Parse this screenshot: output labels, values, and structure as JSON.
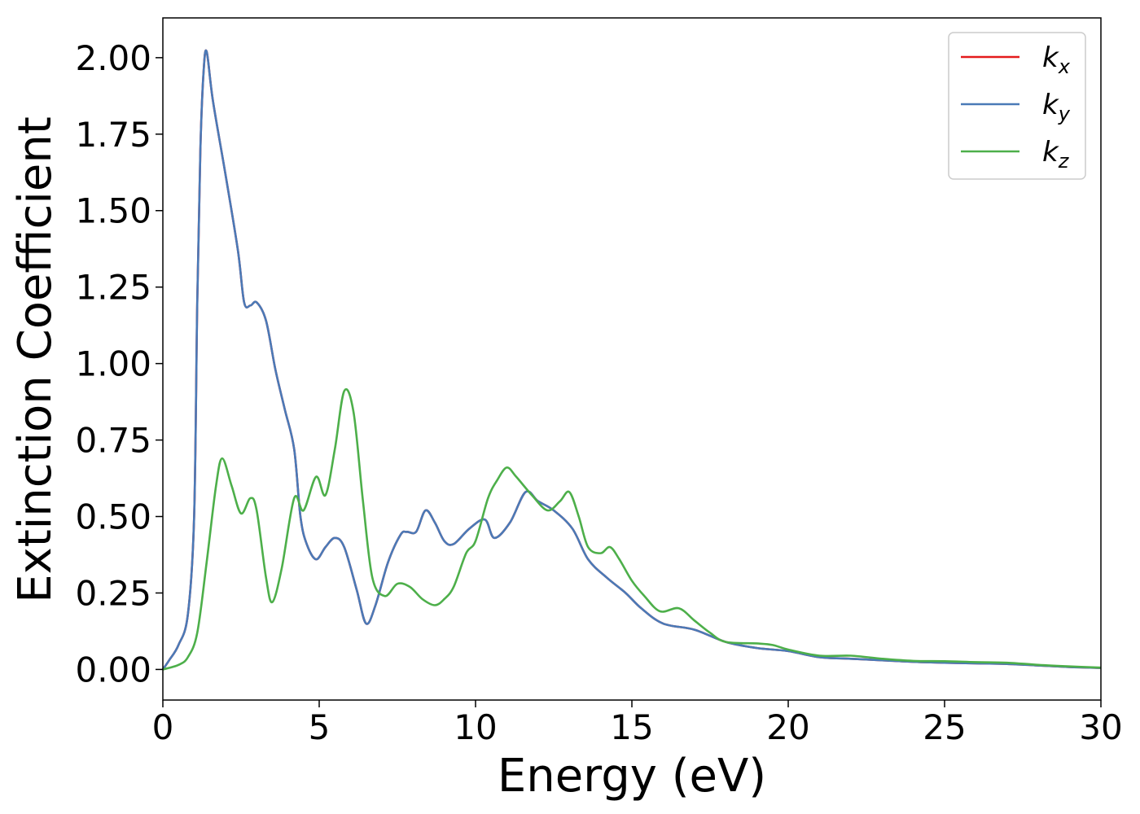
{
  "chart_data": {
    "type": "line",
    "xlabel": "Energy (eV)",
    "ylabel": "Extinction Coefficient",
    "xlim": [
      0,
      30
    ],
    "ylim": [
      -0.1,
      2.13
    ],
    "xticks": [
      0,
      5,
      10,
      15,
      20,
      25,
      30
    ],
    "yticks": [
      "0.00",
      "0.25",
      "0.50",
      "0.75",
      "1.00",
      "1.25",
      "1.50",
      "1.75",
      "2.00"
    ],
    "grid": false,
    "legend_position": "top-right",
    "series": [
      {
        "name": "k",
        "subscript": "x",
        "color": "#e41a1c",
        "points": [
          [
            0,
            0
          ],
          [
            0.2,
            0.03
          ],
          [
            0.5,
            0.08
          ],
          [
            0.8,
            0.18
          ],
          [
            1.0,
            0.5
          ],
          [
            1.1,
            1.2
          ],
          [
            1.2,
            1.7
          ],
          [
            1.3,
            1.95
          ],
          [
            1.4,
            2.02
          ],
          [
            1.6,
            1.86
          ],
          [
            2.0,
            1.62
          ],
          [
            2.4,
            1.37
          ],
          [
            2.6,
            1.2
          ],
          [
            2.8,
            1.19
          ],
          [
            3.0,
            1.2
          ],
          [
            3.3,
            1.14
          ],
          [
            3.6,
            0.98
          ],
          [
            3.9,
            0.85
          ],
          [
            4.2,
            0.72
          ],
          [
            4.4,
            0.5
          ],
          [
            4.6,
            0.41
          ],
          [
            4.9,
            0.36
          ],
          [
            5.2,
            0.4
          ],
          [
            5.5,
            0.43
          ],
          [
            5.8,
            0.4
          ],
          [
            6.2,
            0.26
          ],
          [
            6.5,
            0.15
          ],
          [
            6.8,
            0.21
          ],
          [
            7.2,
            0.35
          ],
          [
            7.6,
            0.44
          ],
          [
            7.8,
            0.45
          ],
          [
            8.1,
            0.45
          ],
          [
            8.4,
            0.52
          ],
          [
            8.7,
            0.48
          ],
          [
            9.0,
            0.42
          ],
          [
            9.3,
            0.41
          ],
          [
            9.8,
            0.46
          ],
          [
            10.3,
            0.49
          ],
          [
            10.6,
            0.43
          ],
          [
            11.1,
            0.48
          ],
          [
            11.6,
            0.58
          ],
          [
            12.0,
            0.55
          ],
          [
            12.5,
            0.52
          ],
          [
            13.1,
            0.46
          ],
          [
            13.6,
            0.36
          ],
          [
            14.2,
            0.3
          ],
          [
            14.8,
            0.25
          ],
          [
            15.3,
            0.2
          ],
          [
            16.0,
            0.15
          ],
          [
            17.0,
            0.13
          ],
          [
            18.0,
            0.09
          ],
          [
            19.0,
            0.07
          ],
          [
            20.0,
            0.06
          ],
          [
            21.0,
            0.04
          ],
          [
            22.0,
            0.035
          ],
          [
            23.0,
            0.03
          ],
          [
            24.0,
            0.025
          ],
          [
            25.0,
            0.022
          ],
          [
            26.0,
            0.02
          ],
          [
            27.0,
            0.018
          ],
          [
            28.0,
            0.013
          ],
          [
            29.0,
            0.008
          ],
          [
            30.0,
            0.005
          ]
        ]
      },
      {
        "name": "k",
        "subscript": "y",
        "color": "#4a7ab7",
        "points": [
          [
            0,
            0
          ],
          [
            0.2,
            0.03
          ],
          [
            0.5,
            0.08
          ],
          [
            0.8,
            0.18
          ],
          [
            1.0,
            0.5
          ],
          [
            1.1,
            1.2
          ],
          [
            1.2,
            1.7
          ],
          [
            1.3,
            1.95
          ],
          [
            1.4,
            2.02
          ],
          [
            1.6,
            1.86
          ],
          [
            2.0,
            1.62
          ],
          [
            2.4,
            1.37
          ],
          [
            2.6,
            1.2
          ],
          [
            2.8,
            1.19
          ],
          [
            3.0,
            1.2
          ],
          [
            3.3,
            1.14
          ],
          [
            3.6,
            0.98
          ],
          [
            3.9,
            0.85
          ],
          [
            4.2,
            0.72
          ],
          [
            4.4,
            0.5
          ],
          [
            4.6,
            0.41
          ],
          [
            4.9,
            0.36
          ],
          [
            5.2,
            0.4
          ],
          [
            5.5,
            0.43
          ],
          [
            5.8,
            0.4
          ],
          [
            6.2,
            0.26
          ],
          [
            6.5,
            0.15
          ],
          [
            6.8,
            0.21
          ],
          [
            7.2,
            0.35
          ],
          [
            7.6,
            0.44
          ],
          [
            7.8,
            0.45
          ],
          [
            8.1,
            0.45
          ],
          [
            8.4,
            0.52
          ],
          [
            8.7,
            0.48
          ],
          [
            9.0,
            0.42
          ],
          [
            9.3,
            0.41
          ],
          [
            9.8,
            0.46
          ],
          [
            10.3,
            0.49
          ],
          [
            10.6,
            0.43
          ],
          [
            11.1,
            0.48
          ],
          [
            11.6,
            0.58
          ],
          [
            12.0,
            0.55
          ],
          [
            12.5,
            0.52
          ],
          [
            13.1,
            0.46
          ],
          [
            13.6,
            0.36
          ],
          [
            14.2,
            0.3
          ],
          [
            14.8,
            0.25
          ],
          [
            15.3,
            0.2
          ],
          [
            16.0,
            0.15
          ],
          [
            17.0,
            0.13
          ],
          [
            18.0,
            0.09
          ],
          [
            19.0,
            0.07
          ],
          [
            20.0,
            0.06
          ],
          [
            21.0,
            0.04
          ],
          [
            22.0,
            0.035
          ],
          [
            23.0,
            0.03
          ],
          [
            24.0,
            0.025
          ],
          [
            25.0,
            0.022
          ],
          [
            26.0,
            0.02
          ],
          [
            27.0,
            0.018
          ],
          [
            28.0,
            0.013
          ],
          [
            29.0,
            0.008
          ],
          [
            30.0,
            0.005
          ]
        ]
      },
      {
        "name": "k",
        "subscript": "z",
        "color": "#4daf4a",
        "points": [
          [
            0,
            0
          ],
          [
            0.5,
            0.015
          ],
          [
            0.8,
            0.04
          ],
          [
            1.1,
            0.12
          ],
          [
            1.4,
            0.35
          ],
          [
            1.7,
            0.6
          ],
          [
            1.9,
            0.69
          ],
          [
            2.2,
            0.6
          ],
          [
            2.5,
            0.51
          ],
          [
            2.8,
            0.56
          ],
          [
            3.0,
            0.52
          ],
          [
            3.3,
            0.3
          ],
          [
            3.5,
            0.22
          ],
          [
            3.8,
            0.33
          ],
          [
            4.2,
            0.56
          ],
          [
            4.5,
            0.52
          ],
          [
            4.9,
            0.63
          ],
          [
            5.2,
            0.57
          ],
          [
            5.5,
            0.72
          ],
          [
            5.8,
            0.91
          ],
          [
            6.1,
            0.84
          ],
          [
            6.4,
            0.55
          ],
          [
            6.7,
            0.3
          ],
          [
            7.1,
            0.24
          ],
          [
            7.5,
            0.28
          ],
          [
            7.9,
            0.27
          ],
          [
            8.3,
            0.23
          ],
          [
            8.7,
            0.21
          ],
          [
            9.0,
            0.23
          ],
          [
            9.3,
            0.27
          ],
          [
            9.7,
            0.38
          ],
          [
            10.0,
            0.42
          ],
          [
            10.4,
            0.56
          ],
          [
            10.7,
            0.62
          ],
          [
            11.0,
            0.66
          ],
          [
            11.3,
            0.63
          ],
          [
            11.8,
            0.57
          ],
          [
            12.3,
            0.52
          ],
          [
            12.7,
            0.55
          ],
          [
            13.0,
            0.58
          ],
          [
            13.3,
            0.5
          ],
          [
            13.6,
            0.4
          ],
          [
            14.0,
            0.38
          ],
          [
            14.3,
            0.4
          ],
          [
            14.6,
            0.36
          ],
          [
            15.0,
            0.29
          ],
          [
            15.4,
            0.24
          ],
          [
            15.9,
            0.19
          ],
          [
            16.5,
            0.2
          ],
          [
            17.0,
            0.16
          ],
          [
            17.5,
            0.12
          ],
          [
            18.0,
            0.09
          ],
          [
            19.0,
            0.085
          ],
          [
            19.5,
            0.08
          ],
          [
            20.0,
            0.065
          ],
          [
            21.0,
            0.045
          ],
          [
            22.0,
            0.045
          ],
          [
            23.0,
            0.035
          ],
          [
            24.0,
            0.028
          ],
          [
            25.0,
            0.027
          ],
          [
            26.0,
            0.024
          ],
          [
            27.0,
            0.022
          ],
          [
            28.0,
            0.015
          ],
          [
            29.0,
            0.01
          ],
          [
            30.0,
            0.006
          ]
        ]
      }
    ]
  }
}
